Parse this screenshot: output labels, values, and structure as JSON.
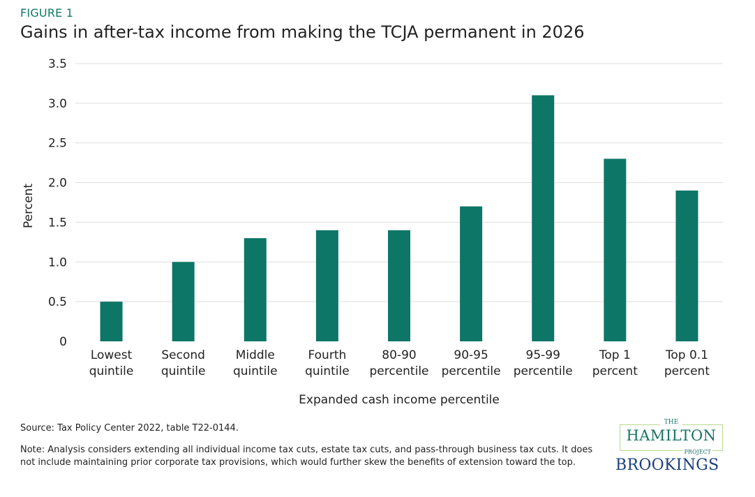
{
  "figure_label": "FIGURE 1",
  "title": "Gains in after-tax income from making the TCJA permanent in 2026",
  "source": "Source: Tax Policy Center 2022, table T22-0144.",
  "note": "Note: Analysis considers extending all individual income tax cuts, estate tax cuts, and pass-through business tax cuts. It does not include maintaining prior corporate tax provisions, which would further skew the benefits of extension toward the top.",
  "logos": {
    "hamilton_the": "THE",
    "hamilton_name": "HAMILTON",
    "hamilton_project": "PROJECT",
    "brookings": "BROOKINGS"
  },
  "colors": {
    "bar": "#0e7666",
    "accent": "#0e7a68",
    "grid": "#dddddd"
  },
  "chart_data": {
    "type": "bar",
    "categories": [
      [
        "Lowest",
        "quintile"
      ],
      [
        "Second",
        "quintile"
      ],
      [
        "Middle",
        "quintile"
      ],
      [
        "Fourth",
        "quintile"
      ],
      [
        "80-90",
        "percentile"
      ],
      [
        "90-95",
        "percentile"
      ],
      [
        "95-99",
        "percentile"
      ],
      [
        "Top 1",
        "percent"
      ],
      [
        "Top 0.1",
        "percent"
      ]
    ],
    "values": [
      0.5,
      1.0,
      1.3,
      1.4,
      1.4,
      1.7,
      3.1,
      2.3,
      1.9
    ],
    "xlabel": "Expanded cash income percentile",
    "ylabel": "Percent",
    "ylim": [
      0,
      3.5
    ],
    "yticks": [
      "0",
      "0.5",
      "1.0",
      "1.5",
      "2.0",
      "2.5",
      "3.0",
      "3.5"
    ],
    "grid": true
  }
}
